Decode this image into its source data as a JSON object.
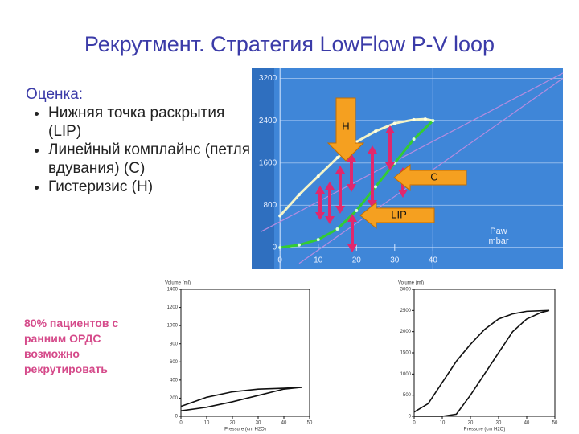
{
  "title": "Рекрутмент. Стратегия LowFlow P-V loop",
  "bullets": {
    "heading": "Оценка:",
    "items": [
      "Нижняя точка раскрытия (LIP)",
      "Линейный комплайнс (петля вдувания) (С)",
      "Гистеризис (Н)"
    ]
  },
  "note": "80% пациентов с ранним ОРДС возможно рекрутировать",
  "chart_data": [
    {
      "type": "line",
      "x_label": [
        "Paw",
        "mbar"
      ],
      "annotations": [
        "H",
        "C",
        "LIP"
      ],
      "xlim": [
        -7.4,
        74
      ],
      "ylim": [
        -410,
        3390
      ],
      "xticks": [
        0,
        10,
        20,
        30,
        40
      ],
      "yticks": [
        0,
        800,
        1600,
        2400,
        3200
      ],
      "grid": true,
      "series": [
        {
          "color": "#f4f4c8",
          "x": [
            0,
            5,
            10,
            15,
            20,
            25,
            30,
            35,
            38,
            40
          ],
          "values": [
            600,
            1000,
            1350,
            1700,
            2000,
            2200,
            2350,
            2420,
            2430,
            2400
          ]
        },
        {
          "color": "#33cc33",
          "x": [
            0,
            5,
            10,
            15,
            20,
            25,
            30,
            35,
            40
          ],
          "values": [
            0,
            50,
            150,
            350,
            700,
            1150,
            1600,
            2050,
            2400
          ]
        }
      ]
    },
    {
      "type": "line",
      "y_label": "Volume (ml)",
      "x_label": "Pressure (cm H2O)",
      "xlim": [
        0,
        50
      ],
      "ylim": [
        0,
        1400
      ],
      "xticks": [
        0,
        10,
        20,
        30,
        40,
        50
      ],
      "yticks": [
        0,
        200,
        400,
        600,
        800,
        1000,
        1200,
        1400
      ],
      "grid": false,
      "series": [
        {
          "color": "#111111",
          "x": [
            0,
            10,
            20,
            30,
            40,
            47
          ],
          "values": [
            110,
            210,
            270,
            300,
            310,
            320
          ]
        },
        {
          "color": "#111111",
          "x": [
            0,
            10,
            20,
            30,
            40,
            47
          ],
          "values": [
            60,
            100,
            160,
            230,
            300,
            320
          ]
        }
      ]
    },
    {
      "type": "line",
      "y_label": "Volume (ml)",
      "x_label": "Pressure (cm H2O)",
      "xlim": [
        0,
        50
      ],
      "ylim": [
        0,
        3000
      ],
      "xticks": [
        0,
        10,
        20,
        30,
        40,
        50
      ],
      "yticks": [
        0,
        500,
        1000,
        1500,
        2000,
        2500,
        3000
      ],
      "grid": false,
      "series": [
        {
          "color": "#111111",
          "x": [
            0,
            5,
            10,
            15,
            20,
            25,
            30,
            35,
            40,
            48
          ],
          "values": [
            100,
            300,
            800,
            1300,
            1700,
            2050,
            2300,
            2420,
            2480,
            2500
          ]
        },
        {
          "color": "#111111",
          "x": [
            0,
            10,
            15,
            20,
            25,
            30,
            35,
            40,
            45,
            48
          ],
          "values": [
            0,
            0,
            50,
            500,
            1000,
            1500,
            2000,
            2300,
            2450,
            2500
          ]
        }
      ]
    }
  ]
}
